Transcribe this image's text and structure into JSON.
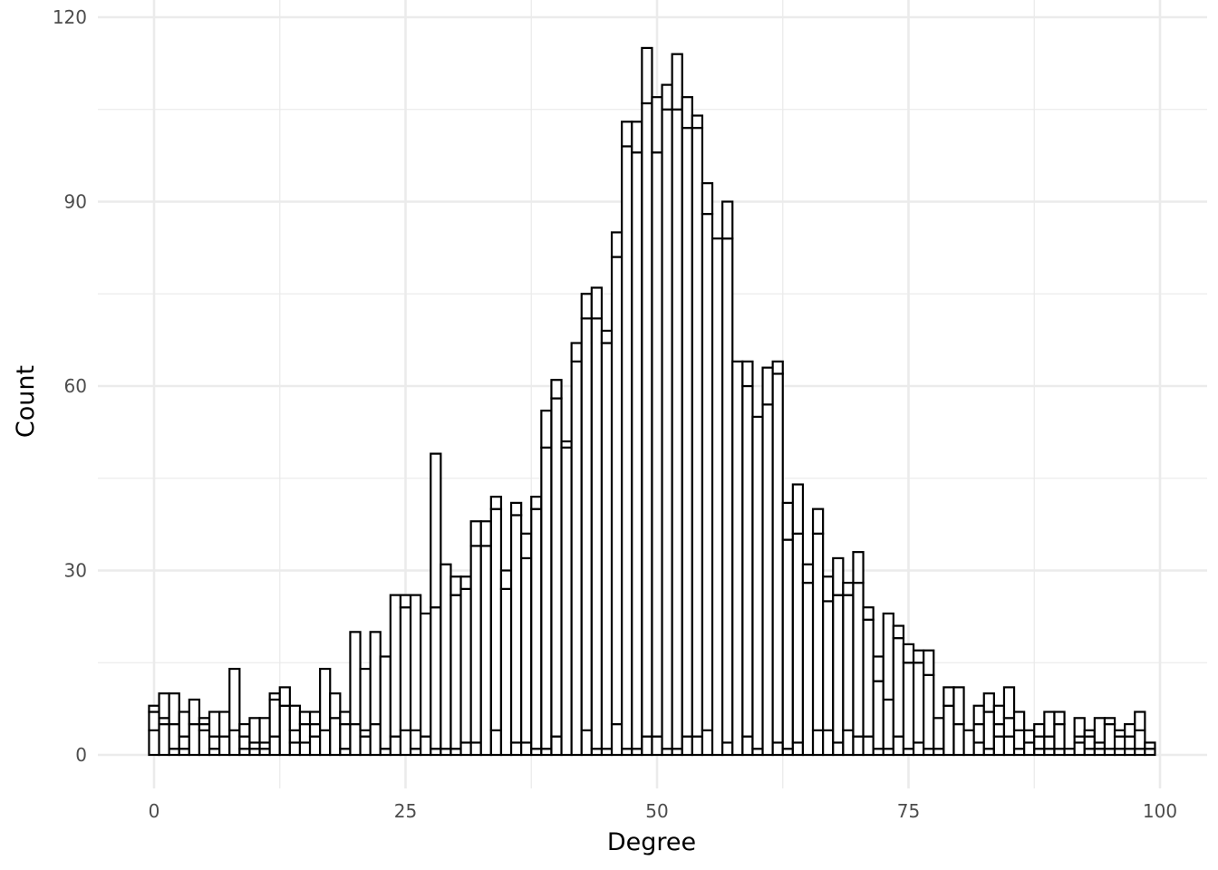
{
  "chart_data": {
    "type": "bar",
    "subtype": "histogram",
    "stacked": true,
    "xlabel": "Degree",
    "ylabel": "Count",
    "xlim": [
      -5.5,
      104.5
    ],
    "ylim": [
      -5,
      120
    ],
    "x_ticks": [
      0,
      25,
      50,
      75,
      100
    ],
    "y_ticks": [
      0,
      30,
      60,
      90,
      120
    ],
    "grid": true,
    "legend": "none",
    "colors": {
      "bar_fill": "#ffffff",
      "bar_outline": "#000000",
      "grid": "#ebebeb",
      "tick_text": "#4d4d4d"
    },
    "x": [
      0,
      1,
      2,
      3,
      4,
      5,
      6,
      7,
      8,
      9,
      10,
      11,
      12,
      13,
      14,
      15,
      16,
      17,
      18,
      19,
      20,
      21,
      22,
      23,
      24,
      25,
      26,
      27,
      28,
      29,
      30,
      31,
      32,
      33,
      34,
      35,
      36,
      37,
      38,
      39,
      40,
      41,
      42,
      43,
      44,
      45,
      46,
      47,
      48,
      49,
      50,
      51,
      52,
      53,
      54,
      55,
      56,
      57,
      58,
      59,
      60,
      61,
      62,
      63,
      64,
      65,
      66,
      67,
      68,
      69,
      70,
      71,
      72,
      73,
      74,
      75,
      76,
      77,
      78,
      79,
      80,
      81,
      82,
      83,
      84,
      85,
      86,
      87,
      88,
      89,
      90,
      91,
      92,
      93,
      94,
      95,
      96,
      97,
      98,
      99
    ],
    "series": [
      {
        "values": [
          4,
          5,
          1,
          1,
          5,
          4,
          1,
          3,
          4,
          1,
          1,
          1,
          3,
          8,
          2,
          2,
          3,
          4,
          6,
          1,
          5,
          3,
          5,
          1,
          3,
          4,
          1,
          0,
          1,
          1,
          1,
          2,
          2,
          0,
          4,
          0,
          2,
          2,
          1,
          1,
          3,
          0,
          0,
          4,
          1,
          1,
          5,
          1,
          1,
          3,
          3,
          1,
          1,
          3,
          3,
          4,
          0,
          2,
          0,
          3,
          1,
          0,
          2,
          1,
          2,
          0,
          4,
          4,
          2,
          4,
          3,
          3,
          1,
          1,
          3,
          1,
          2,
          1,
          1,
          0,
          0,
          0,
          2,
          1,
          3,
          3,
          1,
          0,
          1,
          1,
          1,
          1,
          2,
          1,
          1,
          1,
          1,
          1,
          1,
          1
        ]
      },
      {
        "values": [
          3,
          1,
          4,
          2,
          0,
          1,
          2,
          0,
          0,
          2,
          1,
          1,
          6,
          0,
          2,
          3,
          2,
          0,
          0,
          4,
          0,
          1,
          0,
          0,
          0,
          20,
          3,
          3,
          23,
          0,
          25,
          25,
          32,
          34,
          36,
          27,
          37,
          30,
          39,
          49,
          55,
          50,
          64,
          67,
          70,
          66,
          76,
          98,
          97,
          103,
          95,
          104,
          104,
          99,
          99,
          84,
          0,
          82,
          64,
          57,
          54,
          57,
          60,
          34,
          34,
          28,
          32,
          21,
          24,
          22,
          25,
          19,
          11,
          8,
          16,
          14,
          13,
          12,
          5,
          8,
          5,
          4,
          3,
          6,
          2,
          3,
          3,
          2,
          2,
          2,
          4,
          0,
          1,
          2,
          1,
          4,
          2,
          2,
          3,
          0
        ]
      },
      {
        "values": [
          1,
          4,
          5,
          4,
          4,
          1,
          4,
          4,
          10,
          2,
          4,
          4,
          1,
          3,
          4,
          2,
          2,
          10,
          4,
          2,
          15,
          10,
          15,
          15,
          23,
          2,
          22,
          20,
          25,
          30,
          3,
          2,
          4,
          4,
          2,
          3,
          2,
          4,
          2,
          6,
          3,
          1,
          3,
          4,
          5,
          2,
          4,
          4,
          5,
          9,
          9,
          4,
          9,
          5,
          2,
          5,
          84,
          6,
          0,
          4,
          0,
          6,
          2,
          6,
          8,
          3,
          4,
          4,
          6,
          2,
          5,
          2,
          4,
          14,
          2,
          3,
          2,
          4,
          0,
          3,
          6,
          0,
          3,
          3,
          3,
          5,
          3,
          2,
          2,
          4,
          2,
          0,
          3,
          1,
          4,
          1,
          1,
          2,
          3,
          1
        ]
      }
    ]
  }
}
